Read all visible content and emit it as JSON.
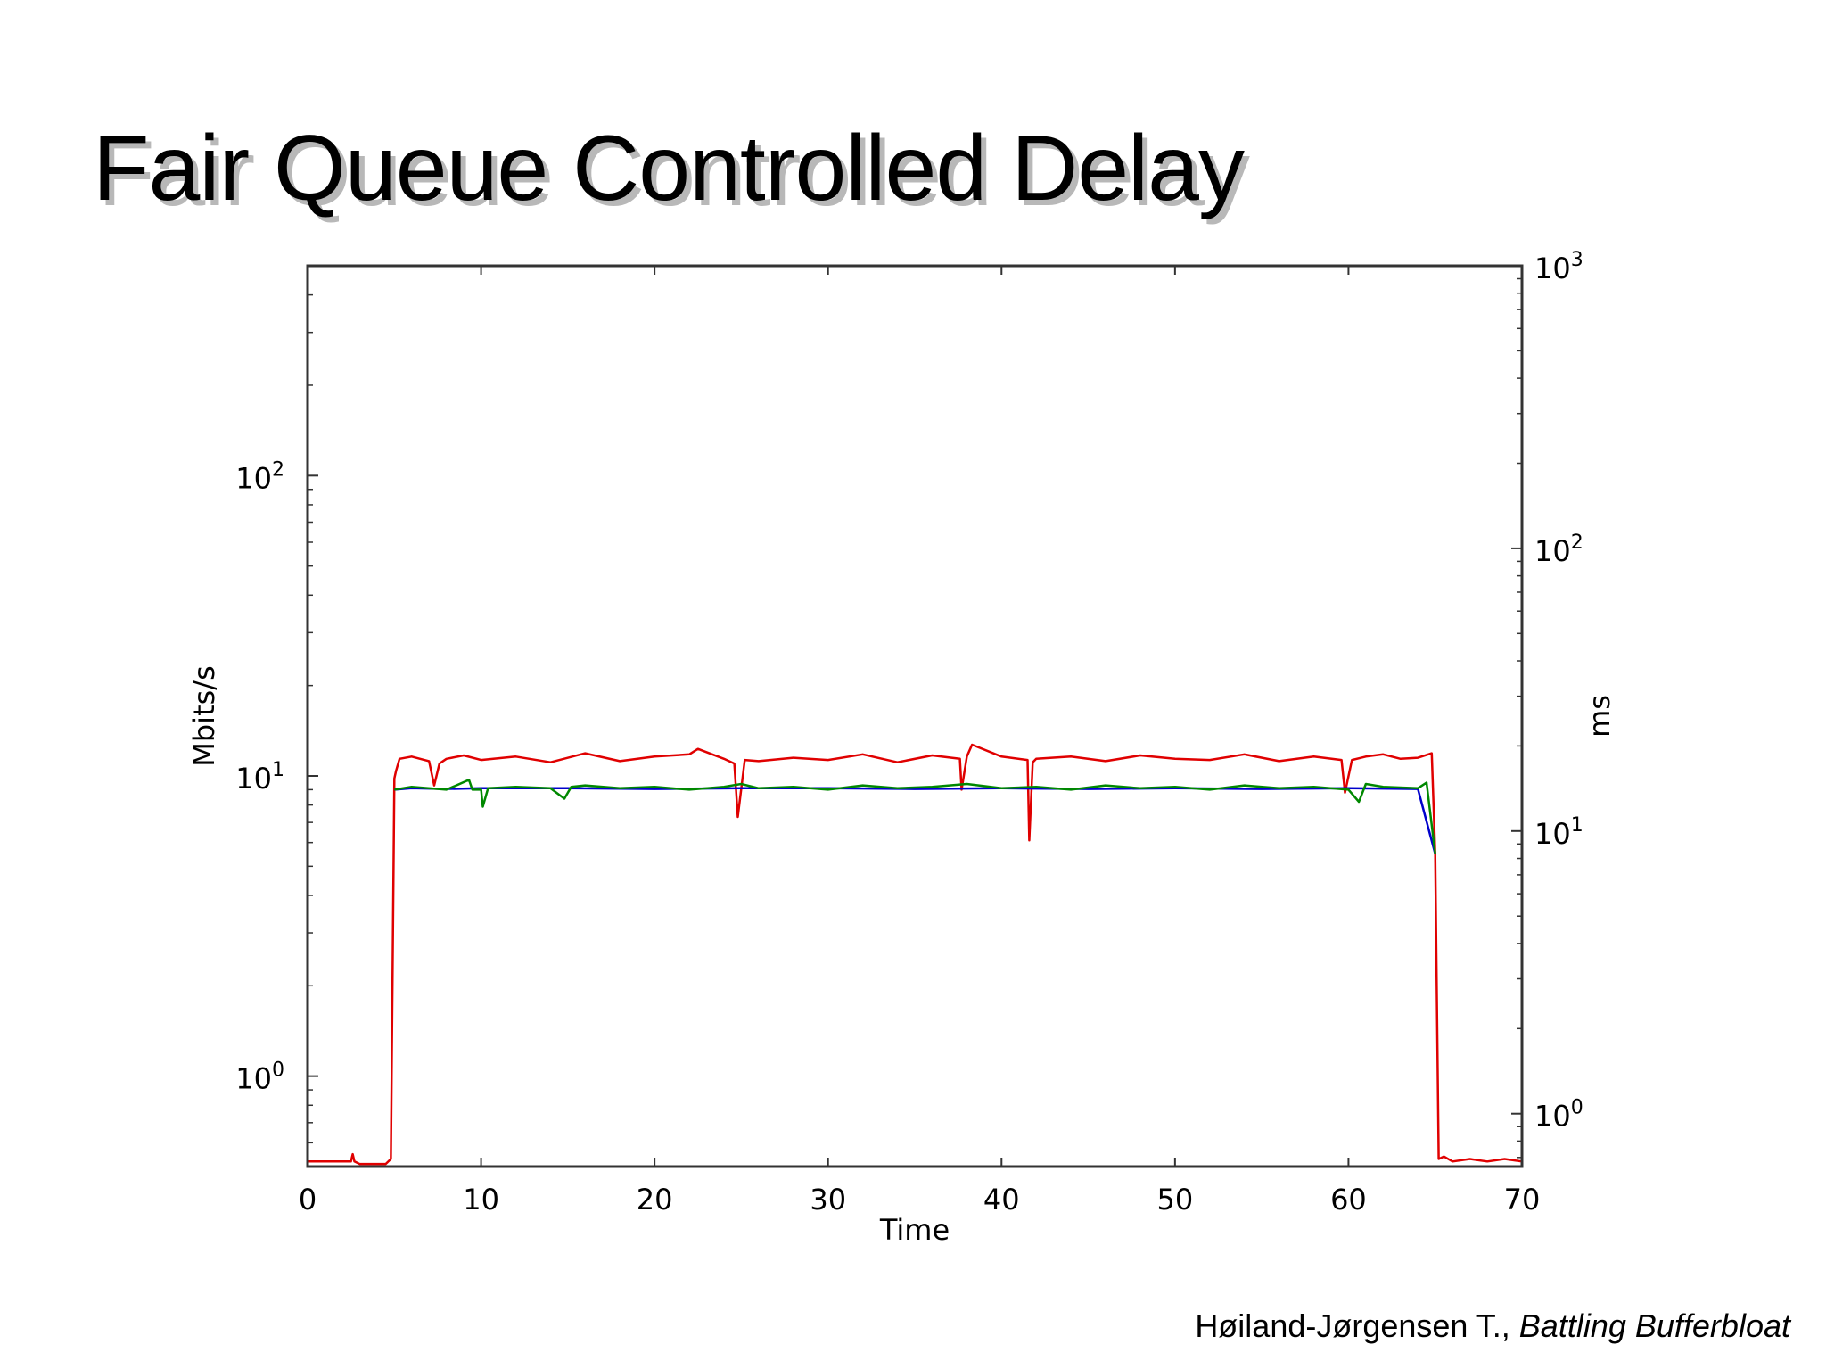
{
  "slide": {
    "title": "Fair Queue Controlled Delay",
    "caption_author": "Høiland-Jørgensen T., ",
    "caption_work": "Battling Bufferbloat"
  },
  "chart_data": {
    "type": "line",
    "xlabel": "Time",
    "ylabel_left": "Mbits/s",
    "ylabel_right": "ms",
    "xlim": [
      0,
      70
    ],
    "ylim_left": [
      0.5,
      500
    ],
    "ylim_right": [
      0.65,
      1000
    ],
    "yscale": "log",
    "grid": false,
    "x_ticks": [
      "0",
      "10",
      "20",
      "30",
      "40",
      "50",
      "60",
      "70"
    ],
    "left_ticks": [
      {
        "value": 1,
        "base": "10",
        "exp": "0"
      },
      {
        "value": 10,
        "base": "10",
        "exp": "1"
      },
      {
        "value": 100,
        "base": "10",
        "exp": "2"
      }
    ],
    "right_ticks": [
      {
        "value": 1,
        "base": "10",
        "exp": "0"
      },
      {
        "value": 10,
        "base": "10",
        "exp": "1"
      },
      {
        "value": 100,
        "base": "10",
        "exp": "2"
      },
      {
        "value": 1000,
        "base": "10",
        "exp": "3"
      }
    ],
    "series": [
      {
        "color": "#e00000",
        "x": [
          0,
          2.5,
          2.6,
          2.7,
          3,
          4.5,
          4.8,
          5.0,
          5.1,
          5.3,
          6,
          7,
          7.3,
          7.6,
          8,
          9,
          10,
          12,
          14,
          16,
          18,
          20,
          22,
          22.5,
          24,
          24.6,
          24.8,
          25.2,
          26,
          28,
          30,
          32,
          34,
          36,
          37.6,
          37.7,
          38,
          38.3,
          40,
          41.5,
          41.6,
          41.8,
          42,
          44,
          46,
          48,
          50,
          52,
          54,
          56,
          58,
          59.6,
          59.8,
          60.2,
          61,
          62,
          63,
          64,
          64.8,
          65.0,
          65.2,
          65.5,
          66,
          67,
          68,
          69,
          70
        ],
        "y": [
          0.52,
          0.52,
          0.55,
          0.52,
          0.51,
          0.51,
          0.53,
          9.8,
          10.4,
          11.4,
          11.6,
          11.2,
          9.3,
          11.0,
          11.4,
          11.7,
          11.3,
          11.6,
          11.1,
          11.9,
          11.2,
          11.6,
          11.8,
          12.3,
          11.4,
          11.0,
          7.3,
          11.3,
          11.2,
          11.5,
          11.3,
          11.8,
          11.1,
          11.7,
          11.4,
          9.0,
          11.6,
          12.7,
          11.6,
          11.3,
          6.1,
          11.1,
          11.4,
          11.6,
          11.2,
          11.7,
          11.4,
          11.3,
          11.8,
          11.2,
          11.6,
          11.3,
          8.8,
          11.3,
          11.6,
          11.8,
          11.4,
          11.5,
          11.9,
          5.5,
          0.53,
          0.54,
          0.52,
          0.53,
          0.52,
          0.53,
          0.52
        ]
      },
      {
        "color": "#0000cc",
        "x": [
          5.0,
          6,
          8,
          10,
          15,
          20,
          25,
          30,
          35,
          40,
          45,
          50,
          55,
          60,
          64,
          65.0
        ],
        "y": [
          9.0,
          9.1,
          9.05,
          9.1,
          9.1,
          9.05,
          9.1,
          9.1,
          9.05,
          9.1,
          9.05,
          9.1,
          9.05,
          9.1,
          9.05,
          5.5
        ]
      },
      {
        "color": "#008800",
        "x": [
          5.0,
          6,
          8,
          9.3,
          9.5,
          10,
          10.1,
          10.4,
          12,
          14,
          14.8,
          15.2,
          16,
          18,
          20,
          22,
          24,
          25,
          26,
          28,
          30,
          32,
          34,
          36,
          38,
          40,
          42,
          44,
          46,
          48,
          50,
          52,
          54,
          56,
          58,
          60,
          60.6,
          61,
          62,
          64,
          64.5,
          65.0
        ],
        "y": [
          9.0,
          9.2,
          9.0,
          9.7,
          9.0,
          9.0,
          7.9,
          9.1,
          9.2,
          9.1,
          8.4,
          9.2,
          9.3,
          9.1,
          9.2,
          9.0,
          9.2,
          9.4,
          9.1,
          9.2,
          9.0,
          9.3,
          9.1,
          9.2,
          9.4,
          9.1,
          9.2,
          9.0,
          9.3,
          9.1,
          9.2,
          9.0,
          9.3,
          9.1,
          9.2,
          9.0,
          8.2,
          9.4,
          9.2,
          9.1,
          9.5,
          5.5
        ]
      }
    ]
  }
}
